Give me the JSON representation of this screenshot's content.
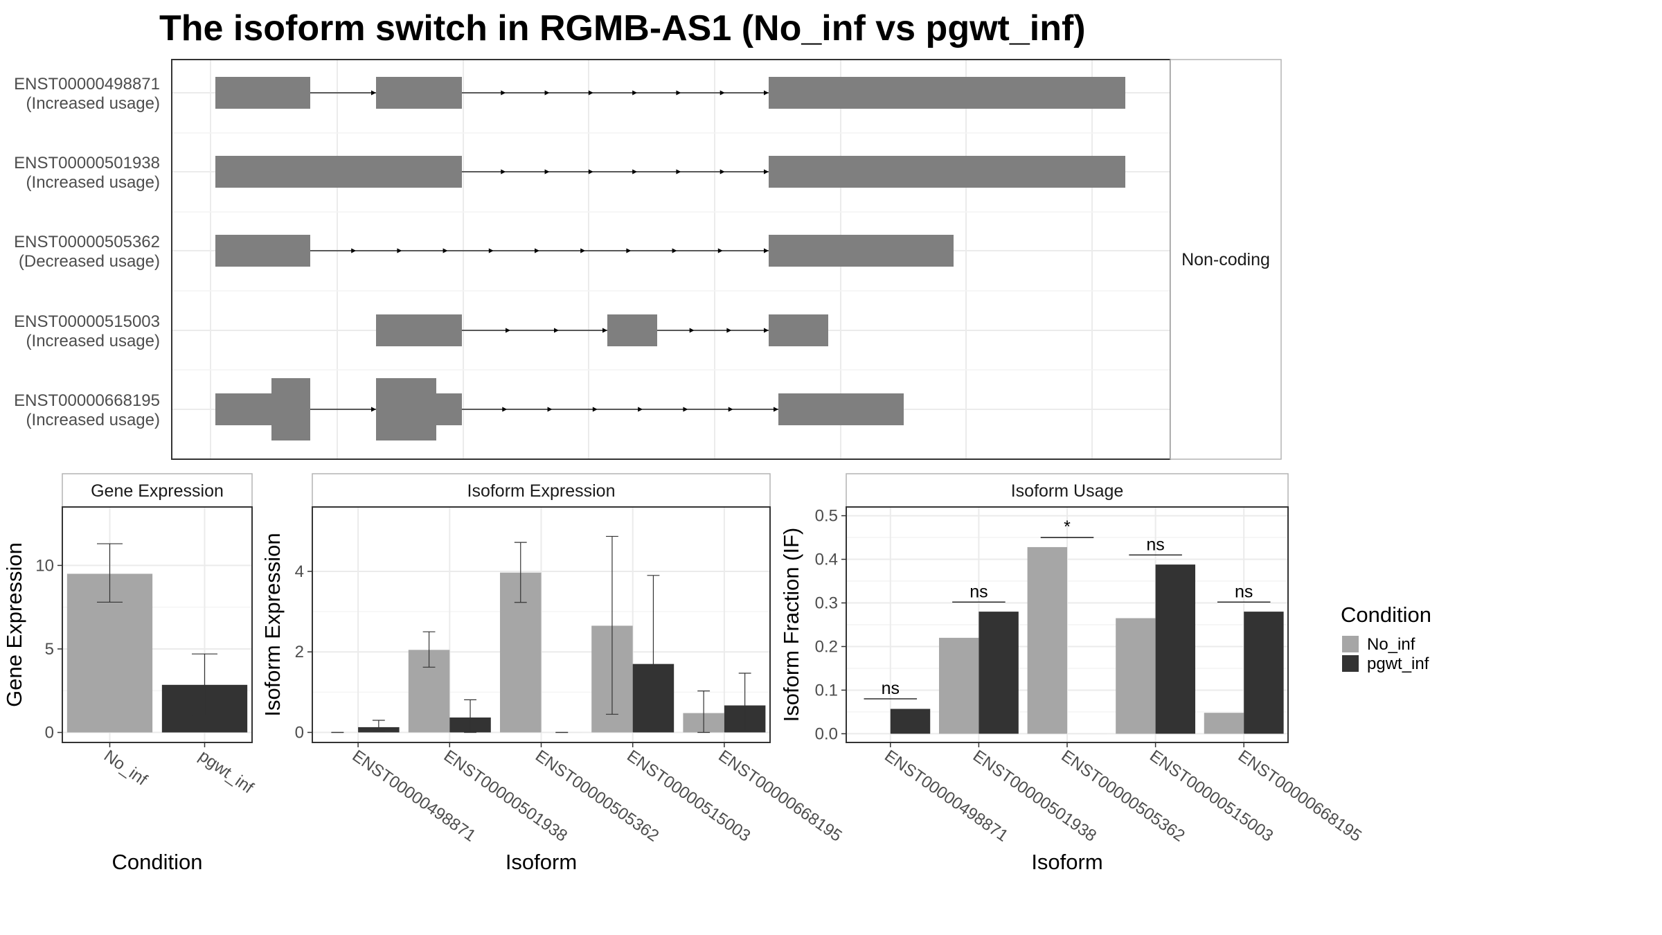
{
  "title": "The isoform switch in RGMB-AS1 (No_inf vs pgwt_inf)",
  "colors": {
    "exon": "#7f7f7f",
    "intron": "#000000",
    "no_inf": "#a6a6a6",
    "pgwt_inf": "#333333",
    "grid": "#ebebeb",
    "panel_border": "#333333",
    "strip_border": "#b3b3b3"
  },
  "structure": {
    "facet_label": "Non-coding",
    "isoforms": [
      {
        "id": "ENST00000498871",
        "usage": "(Increased usage)"
      },
      {
        "id": "ENST00000501938",
        "usage": "(Increased usage)"
      },
      {
        "id": "ENST00000505362",
        "usage": "(Decreased usage)"
      },
      {
        "id": "ENST00000515003",
        "usage": "(Increased usage)"
      },
      {
        "id": "ENST00000668195",
        "usage": "(Increased usage)"
      }
    ]
  },
  "legend": {
    "title": "Condition",
    "items": [
      "No_inf",
      "pgwt_inf"
    ]
  },
  "chart_data": [
    {
      "type": "bar",
      "title": "Gene Expression",
      "xlabel": "Condition",
      "ylabel": "Gene Expression",
      "categories": [
        "No_inf",
        "pgwt_inf"
      ],
      "values": [
        9.5,
        2.85
      ],
      "errors": [
        [
          7.8,
          11.3
        ],
        [
          1.0,
          4.7
        ]
      ],
      "yticks": [
        0,
        5,
        10
      ],
      "ylim": [
        -0.6,
        13.5
      ]
    },
    {
      "type": "bar",
      "title": "Isoform Expression",
      "xlabel": "Isoform",
      "ylabel": "Isoform Expression",
      "categories": [
        "ENST00000498871",
        "ENST00000501938",
        "ENST00000505362",
        "ENST00000515003",
        "ENST00000668195"
      ],
      "series": [
        {
          "name": "No_inf",
          "values": [
            0.0,
            2.05,
            3.97,
            2.65,
            0.48
          ],
          "errors": [
            [
              0.0,
              0.0
            ],
            [
              1.62,
              2.5
            ],
            [
              3.23,
              4.72
            ],
            [
              0.45,
              4.87
            ],
            [
              0.0,
              1.03
            ]
          ]
        },
        {
          "name": "pgwt_inf",
          "values": [
            0.13,
            0.37,
            0.0,
            1.7,
            0.67
          ],
          "errors": [
            [
              0.02,
              0.3
            ],
            [
              0.0,
              0.81
            ],
            [
              0.0,
              0.0
            ],
            [
              0.02,
              3.9
            ],
            [
              0.02,
              1.47
            ]
          ]
        }
      ],
      "yticks": [
        0,
        2,
        4
      ],
      "ylim": [
        -0.25,
        5.6
      ]
    },
    {
      "type": "bar",
      "title": "Isoform Usage",
      "xlabel": "Isoform",
      "ylabel": "Isoform Fraction (IF)",
      "categories": [
        "ENST00000498871",
        "ENST00000501938",
        "ENST00000505362",
        "ENST00000515003",
        "ENST00000668195"
      ],
      "series": [
        {
          "name": "No_inf",
          "values": [
            0.0,
            0.22,
            0.428,
            0.265,
            0.048
          ]
        },
        {
          "name": "pgwt_inf",
          "values": [
            0.057,
            0.28,
            0.0,
            0.388,
            0.28
          ]
        }
      ],
      "annotations": [
        {
          "category": "ENST00000498871",
          "label": "ns",
          "level": 0.08
        },
        {
          "category": "ENST00000501938",
          "label": "ns",
          "level": 0.302
        },
        {
          "category": "ENST00000505362",
          "label": "*",
          "level": 0.45
        },
        {
          "category": "ENST00000515003",
          "label": "ns",
          "level": 0.41
        },
        {
          "category": "ENST00000668195",
          "label": "ns",
          "level": 0.302
        }
      ],
      "yticks": [
        0.0,
        0.1,
        0.2,
        0.3,
        0.4,
        0.5
      ],
      "ytick_labels": [
        "0.0",
        "0.1",
        "0.2",
        "0.3",
        "0.4",
        "0.5"
      ],
      "ylim": [
        -0.02,
        0.52
      ]
    }
  ]
}
